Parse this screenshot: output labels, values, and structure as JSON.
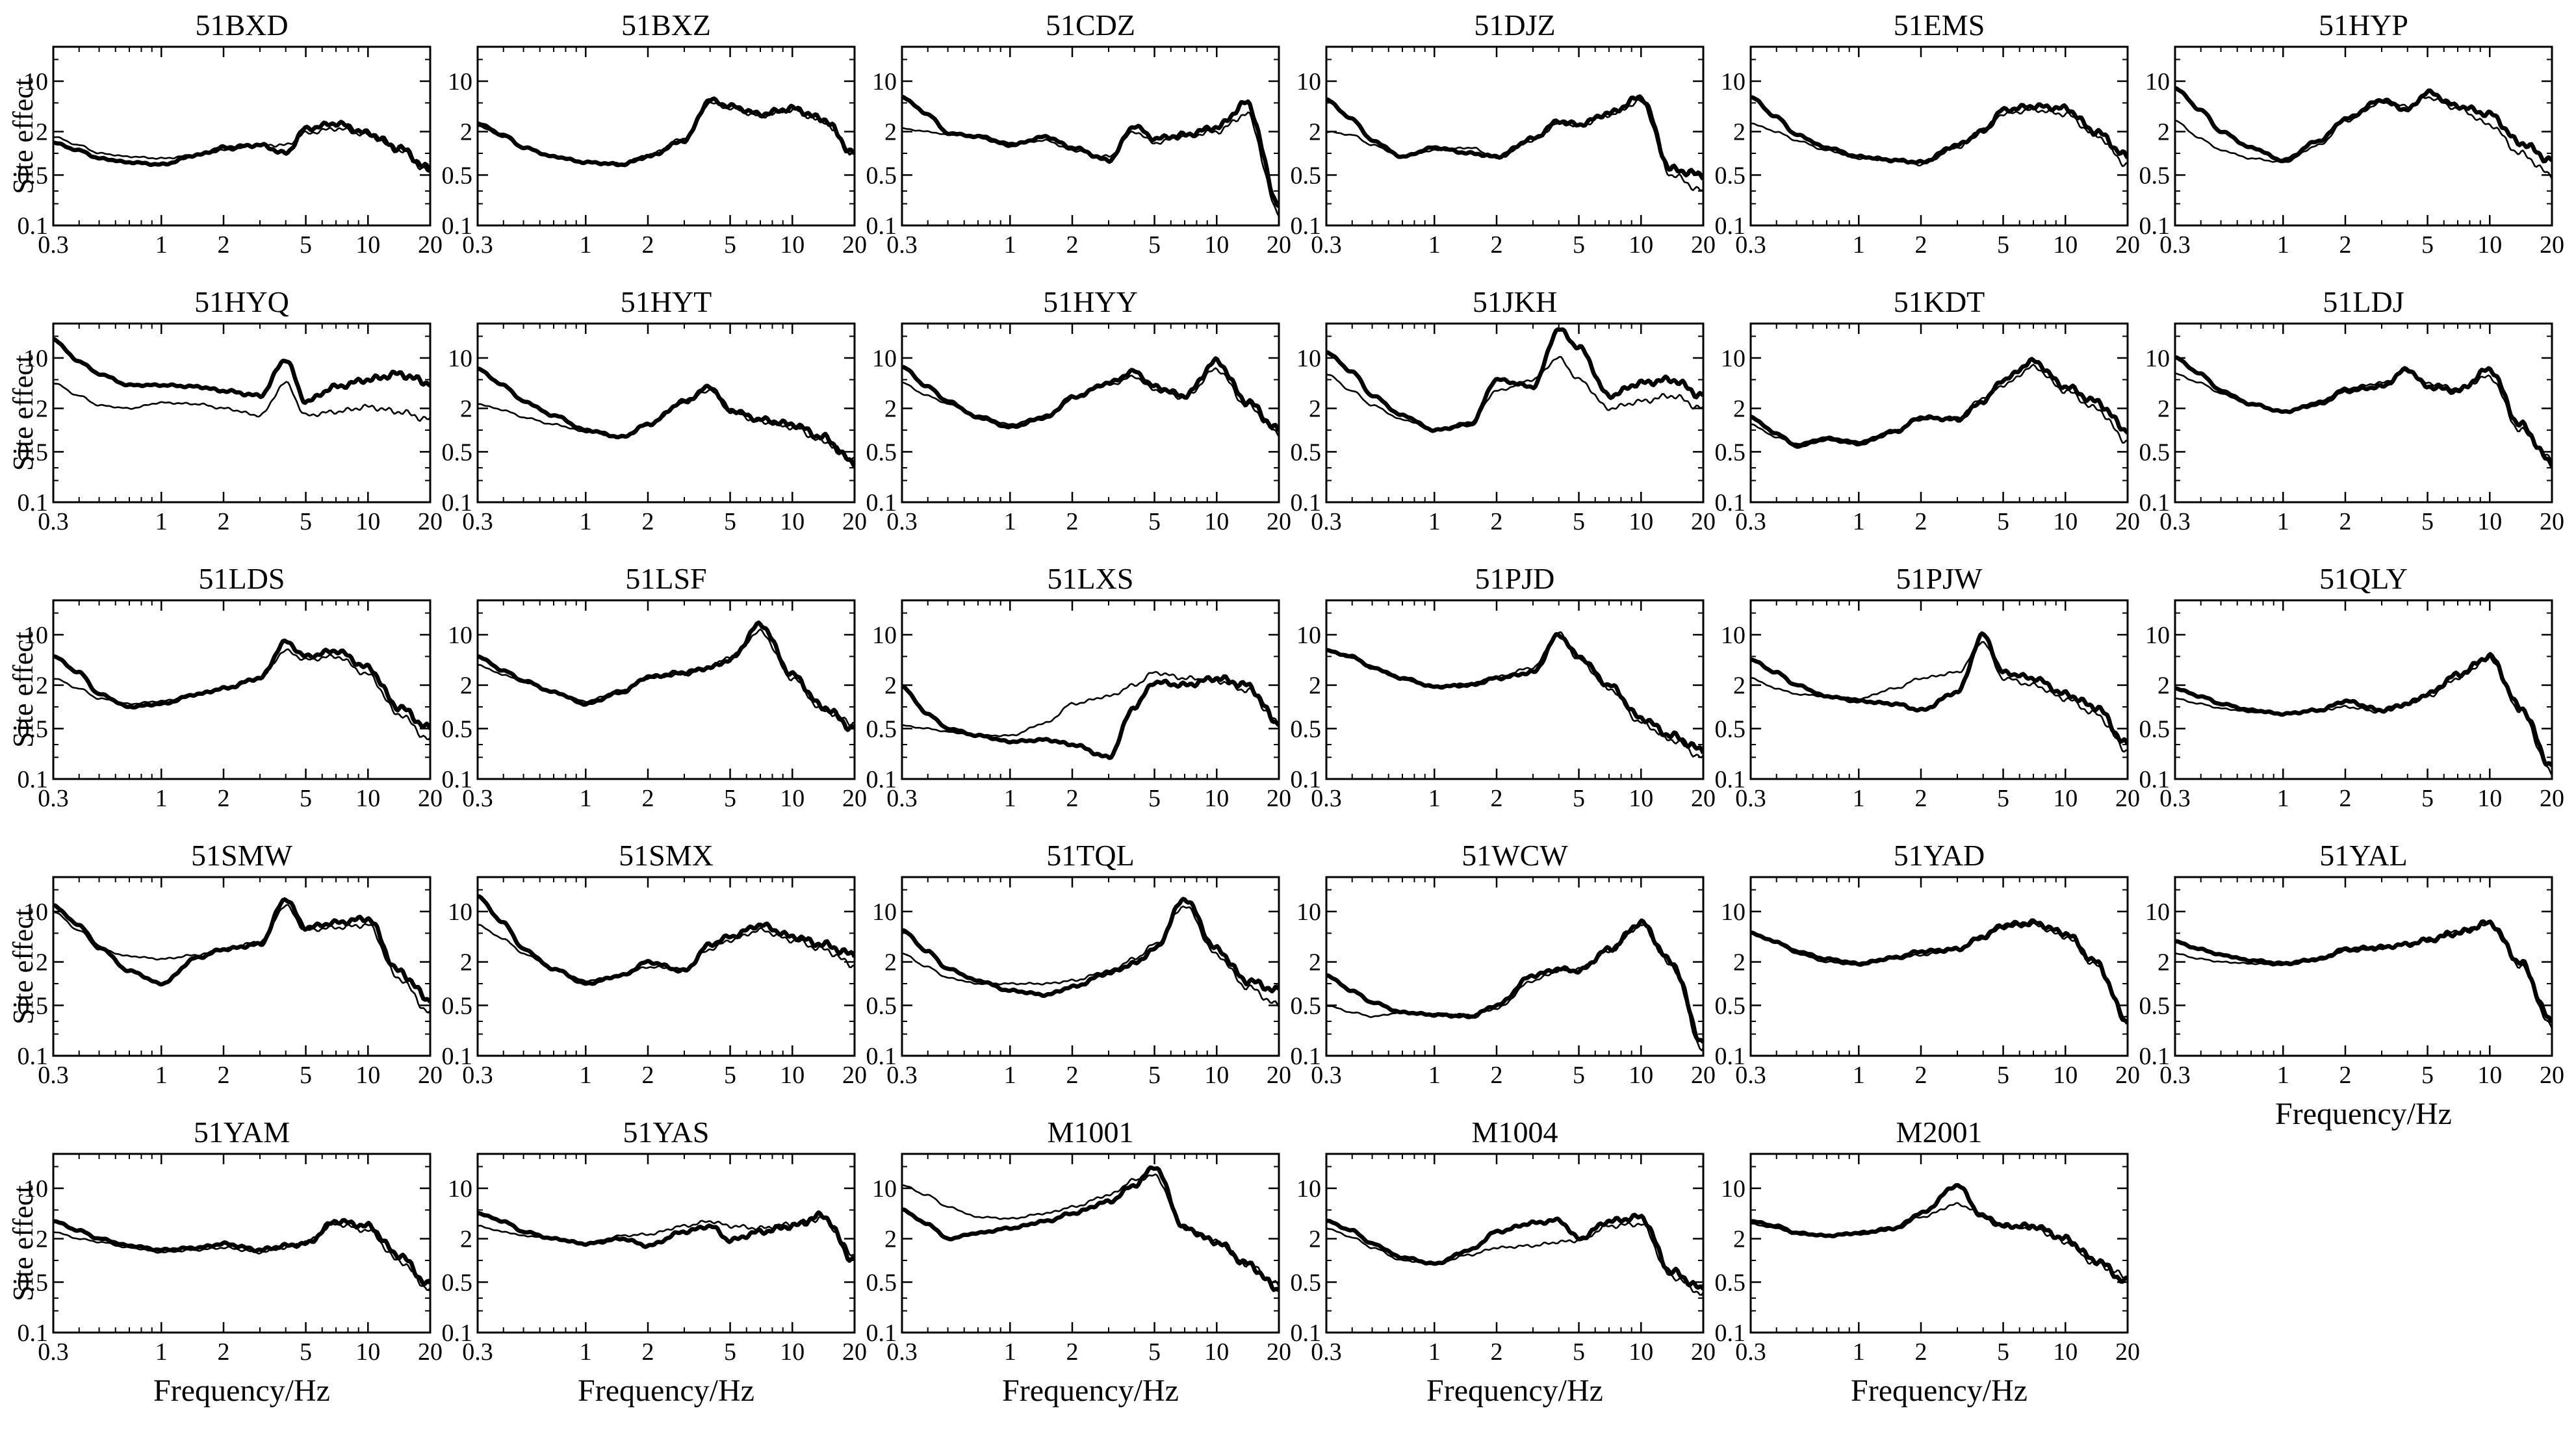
{
  "figure": {
    "xlabel": "Frequency/Hz",
    "ylabel": "Site effect"
  },
  "chart_data": {
    "type": "line",
    "xscale": "log",
    "yscale": "log",
    "xlim": [
      0.3,
      20
    ],
    "ylim": [
      0.1,
      30
    ],
    "xticks": [
      0.3,
      1,
      2,
      5,
      10,
      20
    ],
    "xtick_labels": [
      "0.3",
      "1",
      "2",
      "5",
      "10",
      "20"
    ],
    "yticks": [
      0.1,
      0.5,
      2,
      10
    ],
    "ytick_labels": [
      "0.1",
      "0.5",
      "2",
      "10"
    ],
    "x": [
      0.3,
      0.4,
      0.5,
      0.7,
      1,
      1.5,
      2,
      3,
      4,
      5,
      7,
      10,
      14,
      20
    ],
    "panels": [
      {
        "title": "51BXD",
        "thick": [
          1.4,
          1.1,
          0.85,
          0.75,
          0.7,
          0.95,
          1.2,
          1.3,
          1.0,
          2.2,
          2.6,
          1.9,
          1.2,
          0.6
        ],
        "thin": [
          1.7,
          1.3,
          1.0,
          0.9,
          0.85,
          0.95,
          1.1,
          1.3,
          1.3,
          1.9,
          2.2,
          1.8,
          1.1,
          0.55
        ]
      },
      {
        "title": "51BXZ",
        "thick": [
          2.6,
          1.8,
          1.2,
          0.9,
          0.75,
          0.7,
          0.9,
          1.5,
          5.5,
          4.5,
          3.5,
          4.2,
          3.0,
          1.0
        ],
        "thin": [
          2.4,
          1.7,
          1.2,
          0.9,
          0.75,
          0.72,
          0.95,
          1.6,
          5.0,
          4.2,
          3.3,
          4.0,
          2.8,
          1.0
        ]
      },
      {
        "title": "51CDZ",
        "thick": [
          6.0,
          3.5,
          1.9,
          1.7,
          1.3,
          1.7,
          1.2,
          0.8,
          2.4,
          1.6,
          1.8,
          2.3,
          5.0,
          0.2
        ],
        "thin": [
          2.2,
          2.0,
          1.8,
          1.8,
          1.4,
          1.5,
          1.1,
          0.9,
          2.0,
          1.4,
          1.7,
          2.0,
          3.5,
          0.15
        ]
      },
      {
        "title": "51DJZ",
        "thick": [
          5.5,
          3.0,
          1.5,
          0.9,
          1.2,
          1.0,
          0.9,
          1.6,
          2.8,
          2.5,
          3.6,
          6.0,
          0.6,
          0.5
        ],
        "thin": [
          2.0,
          1.8,
          1.3,
          0.9,
          1.1,
          1.2,
          0.85,
          1.5,
          2.6,
          2.4,
          3.4,
          5.2,
          0.5,
          0.3
        ]
      },
      {
        "title": "51EMS",
        "thick": [
          6.0,
          3.2,
          1.8,
          1.2,
          0.9,
          0.8,
          0.75,
          1.3,
          2.0,
          4.0,
          4.5,
          4.2,
          2.0,
          0.9
        ],
        "thin": [
          2.6,
          2.0,
          1.5,
          1.1,
          0.85,
          0.8,
          0.7,
          1.2,
          2.2,
          3.5,
          4.0,
          3.5,
          1.8,
          0.7
        ]
      },
      {
        "title": "51HYP",
        "thick": [
          8.0,
          4.0,
          2.0,
          1.2,
          0.8,
          1.5,
          3.0,
          5.5,
          4.0,
          7.0,
          4.5,
          3.5,
          1.4,
          0.8
        ],
        "thin": [
          2.8,
          1.6,
          1.1,
          0.85,
          0.75,
          1.3,
          2.8,
          5.0,
          4.5,
          6.0,
          4.2,
          2.5,
          1.0,
          0.5
        ]
      },
      {
        "title": "51HYQ",
        "thick": [
          18.0,
          9.0,
          6.0,
          4.2,
          4.2,
          4.0,
          3.5,
          3.0,
          9.5,
          2.5,
          4.0,
          5.0,
          6.0,
          4.5
        ],
        "thin": [
          4.5,
          3.0,
          2.2,
          2.0,
          2.4,
          2.3,
          2.0,
          1.6,
          4.5,
          1.6,
          1.8,
          2.1,
          1.8,
          1.4
        ]
      },
      {
        "title": "51HYT",
        "thick": [
          7.0,
          4.2,
          2.5,
          1.6,
          1.0,
          0.8,
          1.2,
          2.5,
          4.0,
          1.9,
          1.4,
          1.2,
          0.8,
          0.35
        ],
        "thin": [
          2.3,
          1.9,
          1.5,
          1.2,
          0.95,
          0.8,
          1.2,
          2.4,
          3.6,
          1.8,
          1.3,
          1.1,
          0.7,
          0.4
        ]
      },
      {
        "title": "51HYY",
        "thick": [
          7.5,
          4.0,
          2.5,
          1.5,
          1.1,
          1.5,
          2.8,
          4.5,
          6.5,
          4.0,
          3.0,
          9.0,
          2.5,
          1.0
        ],
        "thin": [
          4.5,
          3.0,
          2.3,
          1.6,
          1.2,
          1.6,
          3.0,
          4.2,
          5.5,
          3.6,
          2.8,
          7.0,
          2.2,
          0.9
        ]
      },
      {
        "title": "51JKH",
        "thick": [
          12.0,
          6.5,
          3.0,
          1.6,
          1.0,
          1.2,
          5.0,
          4.0,
          25.0,
          14.0,
          3.0,
          4.5,
          5.0,
          3.0
        ],
        "thin": [
          6.0,
          3.5,
          2.2,
          1.4,
          1.0,
          1.3,
          3.5,
          5.0,
          10.0,
          5.0,
          2.0,
          2.5,
          3.0,
          2.0
        ]
      },
      {
        "title": "51KDT",
        "thick": [
          1.5,
          0.9,
          0.6,
          0.75,
          0.65,
          0.95,
          1.5,
          1.4,
          2.5,
          5.0,
          9.0,
          4.0,
          2.5,
          1.0
        ],
        "thin": [
          1.2,
          0.8,
          0.65,
          0.8,
          0.7,
          1.0,
          1.4,
          1.5,
          2.8,
          4.2,
          7.5,
          3.5,
          2.0,
          0.7
        ]
      },
      {
        "title": "51LDJ",
        "thick": [
          10.0,
          6.0,
          3.5,
          2.3,
          1.8,
          2.3,
          3.5,
          4.0,
          7.0,
          4.0,
          3.5,
          7.0,
          1.2,
          0.35
        ],
        "thin": [
          6.0,
          4.5,
          3.2,
          2.2,
          1.8,
          2.5,
          3.8,
          4.5,
          6.5,
          4.5,
          3.8,
          5.5,
          1.0,
          0.4
        ]
      },
      {
        "title": "51LDS",
        "thick": [
          5.0,
          3.0,
          1.5,
          1.0,
          1.1,
          1.5,
          1.8,
          2.5,
          8.0,
          5.0,
          6.0,
          3.5,
          1.0,
          0.5
        ],
        "thin": [
          2.5,
          1.8,
          1.3,
          1.1,
          1.2,
          1.5,
          1.8,
          2.5,
          6.0,
          4.5,
          5.0,
          2.8,
          0.8,
          0.35
        ]
      },
      {
        "title": "51LSF",
        "thick": [
          5.0,
          3.2,
          2.3,
          1.6,
          1.1,
          1.6,
          2.6,
          3.0,
          3.5,
          4.5,
          14.0,
          2.8,
          1.0,
          0.5
        ],
        "thin": [
          3.8,
          2.8,
          2.2,
          1.6,
          1.2,
          1.7,
          2.5,
          2.8,
          3.5,
          5.0,
          11.0,
          2.5,
          0.9,
          0.6
        ]
      },
      {
        "title": "51LXS",
        "thick": [
          1.9,
          0.8,
          0.5,
          0.4,
          0.33,
          0.35,
          0.3,
          0.2,
          1.0,
          2.2,
          2.0,
          2.5,
          2.0,
          0.6
        ],
        "thin": [
          0.55,
          0.5,
          0.45,
          0.4,
          0.4,
          0.6,
          1.1,
          1.4,
          2.0,
          3.0,
          2.5,
          2.3,
          1.7,
          0.6
        ]
      },
      {
        "title": "51PJD",
        "thick": [
          6.0,
          5.0,
          3.5,
          2.5,
          1.9,
          2.0,
          2.5,
          3.0,
          10.0,
          5.0,
          2.0,
          0.7,
          0.4,
          0.25
        ],
        "thin": [
          6.0,
          4.8,
          3.4,
          2.4,
          1.9,
          2.1,
          2.6,
          3.5,
          10.5,
          4.5,
          1.8,
          0.6,
          0.35,
          0.2
        ]
      },
      {
        "title": "51PJW",
        "thick": [
          4.5,
          3.0,
          2.0,
          1.4,
          1.2,
          1.1,
          0.9,
          1.6,
          10.0,
          3.0,
          2.5,
          1.5,
          1.0,
          0.3
        ],
        "thin": [
          2.5,
          1.8,
          1.5,
          1.4,
          1.3,
          1.8,
          2.5,
          3.0,
          8.0,
          2.5,
          2.0,
          1.3,
          0.8,
          0.25
        ]
      },
      {
        "title": "51QLY",
        "thick": [
          1.8,
          1.4,
          1.1,
          0.9,
          0.8,
          0.9,
          1.2,
          0.9,
          1.1,
          1.5,
          2.8,
          5.0,
          1.0,
          0.15
        ],
        "thin": [
          1.3,
          1.1,
          0.95,
          0.85,
          0.8,
          0.9,
          1.0,
          0.85,
          1.1,
          1.4,
          2.5,
          4.8,
          0.9,
          0.12
        ]
      },
      {
        "title": "51SMW",
        "thick": [
          12.0,
          6.5,
          3.2,
          1.5,
          1.0,
          2.3,
          3.0,
          3.5,
          15.0,
          6.0,
          7.0,
          8.0,
          1.5,
          0.6
        ],
        "thin": [
          10.0,
          5.5,
          3.0,
          2.4,
          2.2,
          2.5,
          3.0,
          3.8,
          12.0,
          5.5,
          6.0,
          6.5,
          1.2,
          0.4
        ]
      },
      {
        "title": "51SMX",
        "thick": [
          16.0,
          7.0,
          3.0,
          1.6,
          1.0,
          1.3,
          2.0,
          1.5,
          3.5,
          4.5,
          6.5,
          4.5,
          3.5,
          2.5
        ],
        "thin": [
          6.5,
          4.2,
          2.6,
          1.6,
          1.1,
          1.3,
          1.7,
          1.6,
          3.0,
          4.0,
          5.5,
          4.0,
          3.0,
          1.8
        ]
      },
      {
        "title": "51TQL",
        "thick": [
          5.5,
          2.8,
          1.6,
          1.1,
          0.8,
          0.7,
          0.9,
          1.4,
          1.9,
          3.0,
          15.0,
          3.0,
          1.1,
          0.8
        ],
        "thin": [
          2.6,
          1.7,
          1.2,
          1.0,
          1.0,
          1.0,
          1.1,
          1.5,
          2.2,
          3.5,
          12.0,
          2.5,
          0.9,
          0.5
        ]
      },
      {
        "title": "51WCW",
        "thick": [
          1.3,
          0.8,
          0.55,
          0.4,
          0.37,
          0.35,
          0.5,
          1.3,
          1.6,
          1.5,
          3.0,
          7.0,
          2.0,
          0.15
        ],
        "thin": [
          0.5,
          0.4,
          0.35,
          0.4,
          0.38,
          0.37,
          0.45,
          1.1,
          1.5,
          1.6,
          2.8,
          6.5,
          1.8,
          0.12
        ]
      },
      {
        "title": "51YAD",
        "thick": [
          5.0,
          3.8,
          2.8,
          2.2,
          1.9,
          2.3,
          2.8,
          3.0,
          4.5,
          6.5,
          7.0,
          5.0,
          2.0,
          0.3
        ],
        "thin": [
          5.0,
          3.7,
          2.6,
          2.0,
          1.8,
          2.2,
          2.5,
          2.9,
          4.2,
          6.0,
          6.5,
          4.5,
          1.8,
          0.35
        ]
      },
      {
        "title": "51YAL",
        "thick": [
          3.8,
          3.0,
          2.5,
          2.1,
          1.9,
          2.2,
          3.0,
          3.2,
          3.5,
          4.0,
          5.0,
          7.0,
          2.0,
          0.3
        ],
        "thin": [
          2.6,
          2.2,
          2.0,
          1.9,
          1.8,
          2.1,
          2.8,
          3.0,
          3.6,
          4.2,
          5.5,
          6.5,
          1.8,
          0.25
        ]
      },
      {
        "title": "51YAM",
        "thick": [
          3.5,
          2.6,
          2.0,
          1.6,
          1.4,
          1.5,
          1.7,
          1.4,
          1.6,
          1.7,
          3.5,
          3.0,
          1.2,
          0.45
        ],
        "thin": [
          2.5,
          2.0,
          1.8,
          1.5,
          1.3,
          1.4,
          1.5,
          1.3,
          1.5,
          1.8,
          3.2,
          2.6,
          1.0,
          0.4
        ]
      },
      {
        "title": "51YAS",
        "thick": [
          4.5,
          3.5,
          2.5,
          2.0,
          1.7,
          2.0,
          1.6,
          2.5,
          3.0,
          1.9,
          2.5,
          3.0,
          4.2,
          1.0
        ],
        "thin": [
          3.0,
          2.5,
          2.2,
          2.0,
          1.7,
          2.2,
          2.3,
          3.0,
          3.5,
          3.0,
          2.8,
          3.2,
          3.8,
          1.2
        ]
      },
      {
        "title": "M1001",
        "thick": [
          5.0,
          3.2,
          2.0,
          2.4,
          2.8,
          3.5,
          4.5,
          6.5,
          11.0,
          20.0,
          2.8,
          1.8,
          0.9,
          0.4
        ],
        "thin": [
          11.0,
          8.0,
          5.5,
          4.0,
          3.8,
          4.5,
          5.5,
          8.0,
          13.0,
          15.0,
          2.8,
          1.8,
          0.9,
          0.45
        ]
      },
      {
        "title": "M1004",
        "thick": [
          3.5,
          2.6,
          1.7,
          1.1,
          0.9,
          1.4,
          2.5,
          3.3,
          3.6,
          2.0,
          3.5,
          4.0,
          0.7,
          0.4
        ],
        "thin": [
          2.8,
          2.1,
          1.5,
          1.0,
          0.9,
          1.2,
          1.5,
          1.6,
          1.8,
          1.9,
          3.0,
          3.2,
          0.6,
          0.35
        ]
      },
      {
        "title": "M2001",
        "thick": [
          3.5,
          3.0,
          2.4,
          2.2,
          2.4,
          2.8,
          4.5,
          11.0,
          4.0,
          3.0,
          3.0,
          2.0,
          1.0,
          0.5
        ],
        "thin": [
          3.2,
          2.8,
          2.3,
          2.2,
          2.3,
          2.7,
          4.0,
          6.0,
          4.5,
          3.0,
          2.8,
          1.8,
          0.9,
          0.6
        ]
      }
    ]
  }
}
